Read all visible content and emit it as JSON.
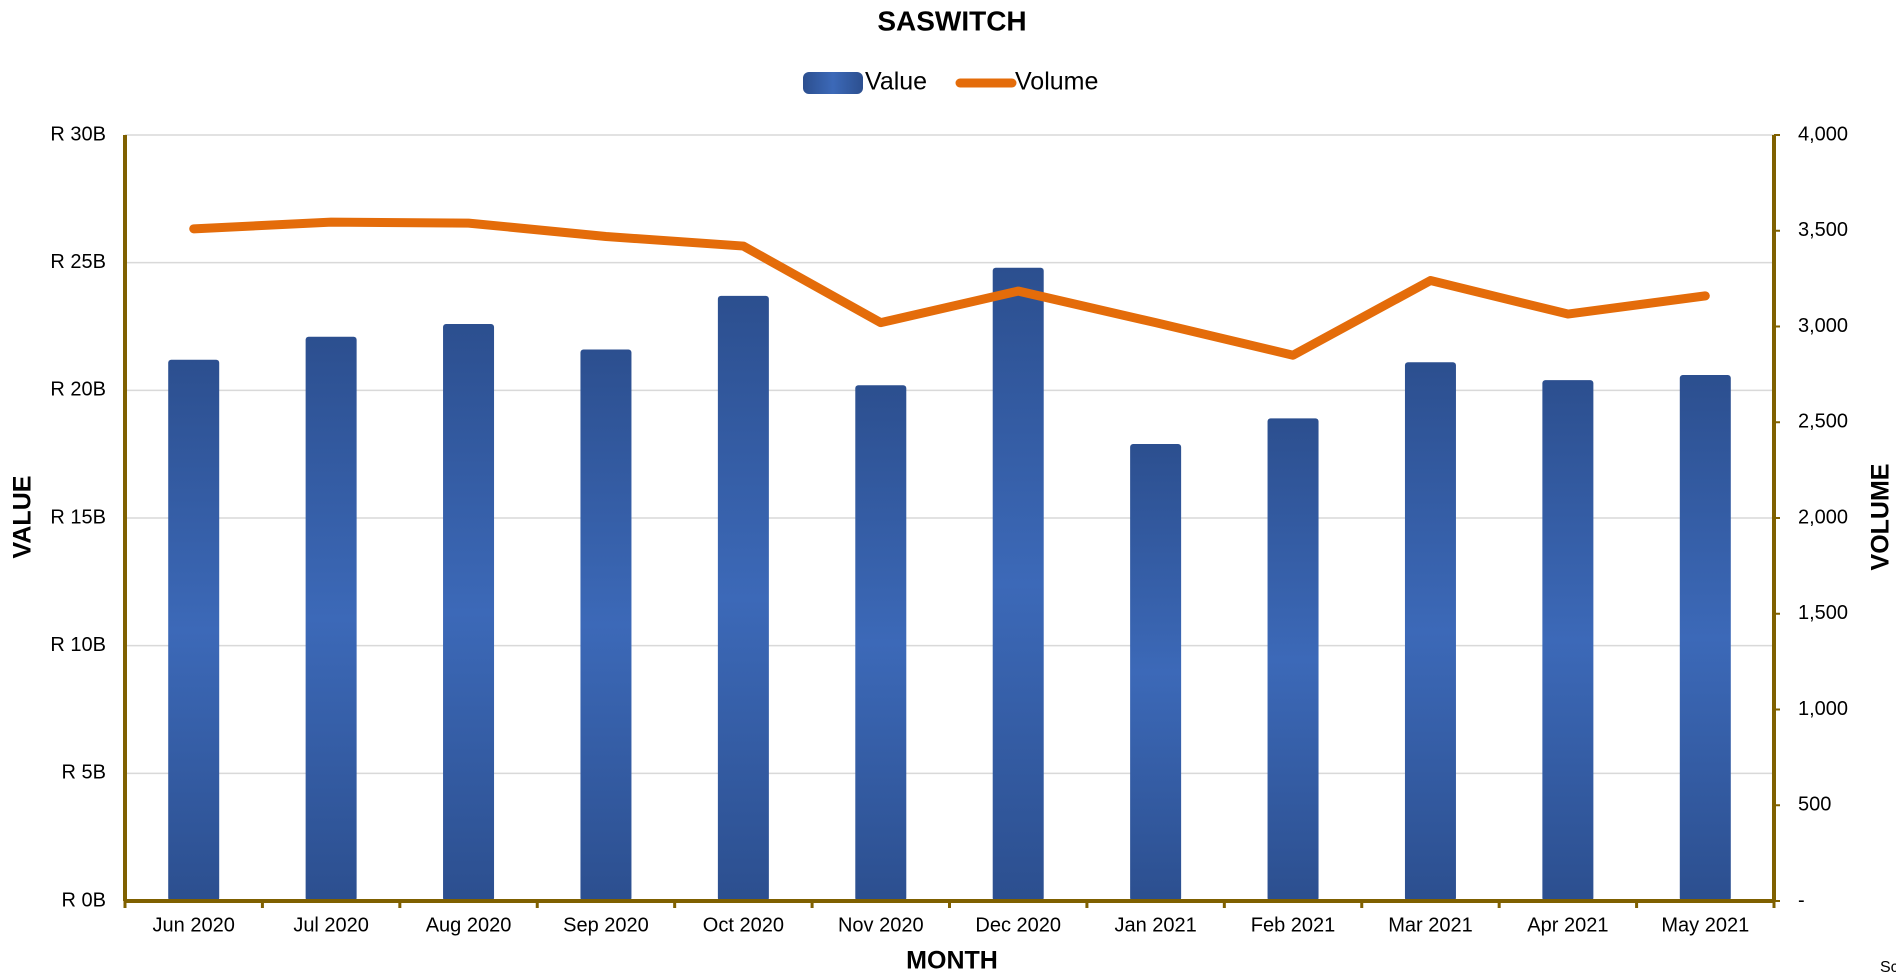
{
  "chart_data": {
    "type": "bar_line",
    "title": "SASWITCH",
    "x_label": "MONTH",
    "y_label": "VALUE",
    "y2_label": "VOLUME",
    "note": "Sc",
    "categories": [
      "Jun 2020",
      "Jul 2020",
      "Aug 2020",
      "Sep 2020",
      "Oct 2020",
      "Nov 2020",
      "Dec 2020",
      "Jan 2021",
      "Feb 2021",
      "Mar 2021",
      "Apr 2021",
      "May 2021"
    ],
    "series": [
      {
        "name": "Value",
        "type": "bar",
        "color": "#3a66b5",
        "values": [
          21.2,
          22.1,
          22.6,
          21.6,
          23.7,
          20.2,
          24.8,
          17.9,
          18.9,
          21.1,
          20.4,
          20.6
        ]
      },
      {
        "name": "Volume",
        "type": "line",
        "axis": "y2",
        "color": "#e46c0a",
        "values": [
          3510,
          3545,
          3540,
          3470,
          3420,
          3020,
          3185,
          3020,
          2850,
          3240,
          3065,
          3160
        ]
      }
    ],
    "ylim": [
      0,
      30
    ],
    "yticks": [
      {
        "value": 0,
        "label": "R 0B"
      },
      {
        "value": 5,
        "label": "R 5B"
      },
      {
        "value": 10,
        "label": "R 10B"
      },
      {
        "value": 15,
        "label": "R 15B"
      },
      {
        "value": 20,
        "label": "R 20B"
      },
      {
        "value": 25,
        "label": "R 25B"
      },
      {
        "value": 30,
        "label": "R 30B"
      }
    ],
    "y2lim": [
      0,
      4000
    ],
    "y2ticks": [
      {
        "value": 0,
        "label": "-"
      },
      500,
      {
        "value": 1000,
        "label": "1,000"
      },
      {
        "value": 1500,
        "label": "1,500"
      },
      {
        "value": 2000,
        "label": "2,000"
      },
      {
        "value": 2500,
        "label": "2,500"
      },
      {
        "value": 3000,
        "label": "3,000"
      },
      {
        "value": 3500,
        "label": "3,500"
      },
      {
        "value": 4000,
        "label": "4,000"
      }
    ],
    "grid": true,
    "legend": "top"
  }
}
